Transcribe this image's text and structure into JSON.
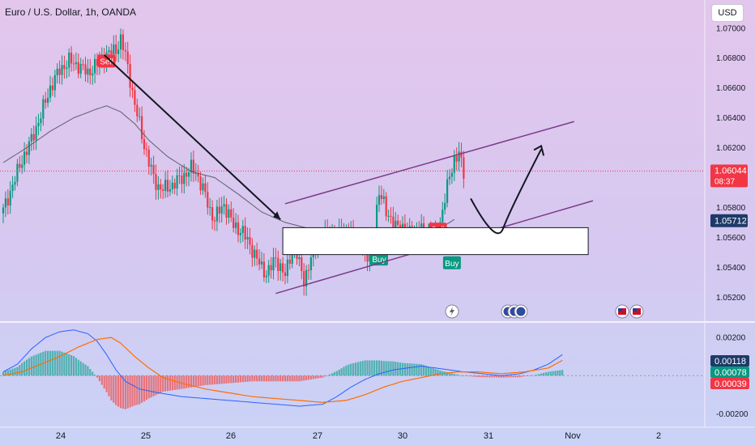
{
  "title": "Euro / U.S. Dollar, 1h, OANDA",
  "currency_button": "USD",
  "colors": {
    "up": "#089981",
    "down": "#f23645",
    "ma": "#5d606b",
    "annotation": "#131722",
    "channel": "#7b3b8a",
    "hist_pos": "#26a69a",
    "hist_neg": "#ef5350",
    "macd_line": "#2962ff",
    "signal_line": "#ff6d00"
  },
  "chart_data": {
    "type": "candlestick",
    "instrument": "Euro / U.S. Dollar",
    "timeframe": "1h",
    "source": "OANDA",
    "x_labels": [
      "24",
      "25",
      "26",
      "27",
      "30",
      "31",
      "Nov",
      "2"
    ],
    "price_axis": {
      "ticks": [
        "1.07000",
        "1.06800",
        "1.06600",
        "1.06400",
        "1.06200",
        "1.05800",
        "1.05600",
        "1.05400",
        "1.05200"
      ],
      "ylim": [
        1.0505,
        1.0708
      ]
    },
    "last_price": {
      "value": "1.06044",
      "countdown": "08:37"
    },
    "marker_price": "1.05712",
    "price_path": [
      [
        0,
        1.0578
      ],
      [
        4,
        1.0595
      ],
      [
        8,
        1.0612
      ],
      [
        12,
        1.0625
      ],
      [
        16,
        1.0642
      ],
      [
        20,
        1.066
      ],
      [
        24,
        1.0672
      ],
      [
        28,
        1.0678
      ],
      [
        32,
        1.0675
      ],
      [
        36,
        1.067
      ],
      [
        40,
        1.0676
      ],
      [
        44,
        1.0682
      ],
      [
        48,
        1.0686
      ],
      [
        50,
        1.0692
      ],
      [
        52,
        1.0682
      ],
      [
        54,
        1.0666
      ],
      [
        56,
        1.0648
      ],
      [
        58,
        1.0636
      ],
      [
        60,
        1.0622
      ],
      [
        62,
        1.061
      ],
      [
        64,
        1.06
      ],
      [
        66,
        1.0594
      ],
      [
        68,
        1.0592
      ],
      [
        72,
        1.0595
      ],
      [
        76,
        1.06
      ],
      [
        80,
        1.0606
      ],
      [
        82,
        1.0604
      ],
      [
        84,
        1.0596
      ],
      [
        86,
        1.0588
      ],
      [
        88,
        1.0578
      ],
      [
        90,
        1.0572
      ],
      [
        92,
        1.0578
      ],
      [
        94,
        1.0582
      ],
      [
        96,
        1.0575
      ],
      [
        98,
        1.0568
      ],
      [
        100,
        1.0566
      ],
      [
        102,
        1.0563
      ],
      [
        104,
        1.0558
      ],
      [
        106,
        1.0552
      ],
      [
        108,
        1.0545
      ],
      [
        110,
        1.054
      ],
      [
        112,
        1.0536
      ],
      [
        114,
        1.054
      ],
      [
        116,
        1.0546
      ],
      [
        118,
        1.054
      ],
      [
        120,
        1.0534
      ],
      [
        122,
        1.0547
      ],
      [
        124,
        1.0554
      ],
      [
        126,
        1.0542
      ],
      [
        128,
        1.0532
      ],
      [
        130,
        1.054
      ],
      [
        132,
        1.0552
      ],
      [
        134,
        1.0558
      ],
      [
        136,
        1.056
      ],
      [
        138,
        1.0561
      ],
      [
        140,
        1.0563
      ],
      [
        142,
        1.056
      ],
      [
        144,
        1.0562
      ],
      [
        146,
        1.0566
      ],
      [
        148,
        1.056
      ],
      [
        150,
        1.0556
      ],
      [
        152,
        1.056
      ],
      [
        154,
        1.0545
      ],
      [
        156,
        1.0548
      ],
      [
        158,
        1.0566
      ],
      [
        160,
        1.0588
      ],
      [
        162,
        1.0585
      ],
      [
        164,
        1.0574
      ],
      [
        166,
        1.0566
      ],
      [
        168,
        1.057
      ],
      [
        170,
        1.0565
      ],
      [
        172,
        1.0563
      ],
      [
        174,
        1.0566
      ],
      [
        176,
        1.0562
      ],
      [
        178,
        1.0565
      ],
      [
        180,
        1.0563
      ],
      [
        182,
        1.056
      ],
      [
        184,
        1.0562
      ],
      [
        186,
        1.057
      ],
      [
        188,
        1.0585
      ],
      [
        190,
        1.0602
      ],
      [
        192,
        1.0612
      ],
      [
        194,
        1.0615
      ],
      [
        196,
        1.0604
      ]
    ],
    "moving_average": [
      [
        0,
        1.061
      ],
      [
        10,
        1.062
      ],
      [
        20,
        1.0631
      ],
      [
        30,
        1.064
      ],
      [
        40,
        1.0646
      ],
      [
        44,
        1.0648
      ],
      [
        50,
        1.0644
      ],
      [
        56,
        1.0636
      ],
      [
        62,
        1.0625
      ],
      [
        70,
        1.0614
      ],
      [
        80,
        1.0604
      ],
      [
        90,
        1.06
      ],
      [
        100,
        1.0589
      ],
      [
        110,
        1.0577
      ],
      [
        120,
        1.057
      ],
      [
        130,
        1.0566
      ],
      [
        140,
        1.0564
      ],
      [
        150,
        1.0563
      ],
      [
        160,
        1.0564
      ],
      [
        170,
        1.0563
      ],
      [
        180,
        1.0563
      ],
      [
        186,
        1.0566
      ],
      [
        192,
        1.0572
      ]
    ],
    "signals": [
      {
        "label": "Sell",
        "kind": "sell",
        "x": 44,
        "y": 1.0678
      },
      {
        "label": "Buy",
        "kind": "buy",
        "x": 160,
        "y": 1.05455
      },
      {
        "label": "Sell",
        "kind": "sell",
        "x": 185,
        "y": 1.05655
      },
      {
        "label": "Buy",
        "kind": "buy",
        "x": 191,
        "y": 1.0543
      }
    ],
    "oscillator": {
      "ticks": [
        "0.00200",
        "-0.00200"
      ],
      "ylim": [
        -0.00245,
        0.0026
      ],
      "macd_value": "0.00118",
      "signal_value": "0.00078",
      "hist_value": "0.00039",
      "macd": [
        [
          0,
          0.0002
        ],
        [
          6,
          0.0006
        ],
        [
          12,
          0.0014
        ],
        [
          18,
          0.002
        ],
        [
          24,
          0.0023
        ],
        [
          30,
          0.0024
        ],
        [
          36,
          0.0022
        ],
        [
          40,
          0.0018
        ],
        [
          44,
          0.0011
        ],
        [
          48,
          0.0003
        ],
        [
          52,
          -0.0003
        ],
        [
          58,
          -0.0007
        ],
        [
          66,
          -0.0009
        ],
        [
          76,
          -0.0011
        ],
        [
          86,
          -0.0012
        ],
        [
          96,
          -0.0013
        ],
        [
          106,
          -0.0014
        ],
        [
          116,
          -0.0015
        ],
        [
          126,
          -0.0016
        ],
        [
          136,
          -0.0015
        ],
        [
          142,
          -0.0011
        ],
        [
          148,
          -0.0006
        ],
        [
          154,
          -0.0002
        ],
        [
          160,
          0.0001
        ],
        [
          166,
          0.0003
        ],
        [
          172,
          0.0004
        ],
        [
          178,
          0.0005
        ],
        [
          184,
          0.0004
        ],
        [
          190,
          0.0003
        ],
        [
          196,
          0.0002
        ],
        [
          204,
          0.0001
        ],
        [
          212,
          0.0
        ],
        [
          220,
          0.0001
        ],
        [
          226,
          0.0003
        ],
        [
          232,
          0.0006
        ],
        [
          238,
          0.0011
        ]
      ],
      "signal": [
        [
          0,
          0.0
        ],
        [
          8,
          0.0002
        ],
        [
          16,
          0.0006
        ],
        [
          24,
          0.001
        ],
        [
          32,
          0.0015
        ],
        [
          40,
          0.0019
        ],
        [
          46,
          0.002
        ],
        [
          50,
          0.0017
        ],
        [
          56,
          0.001
        ],
        [
          62,
          0.0004
        ],
        [
          68,
          -0.0001
        ],
        [
          76,
          -0.0004
        ],
        [
          86,
          -0.0007
        ],
        [
          96,
          -0.0009
        ],
        [
          106,
          -0.0011
        ],
        [
          116,
          -0.0012
        ],
        [
          126,
          -0.0013
        ],
        [
          136,
          -0.0014
        ],
        [
          146,
          -0.0013
        ],
        [
          154,
          -0.001
        ],
        [
          162,
          -0.0006
        ],
        [
          170,
          -0.0003
        ],
        [
          178,
          -0.0001
        ],
        [
          186,
          0.0001
        ],
        [
          194,
          0.0002
        ],
        [
          202,
          0.0002
        ],
        [
          212,
          0.0001
        ],
        [
          222,
          0.0002
        ],
        [
          232,
          0.0004
        ],
        [
          238,
          0.0008
        ]
      ]
    }
  }
}
